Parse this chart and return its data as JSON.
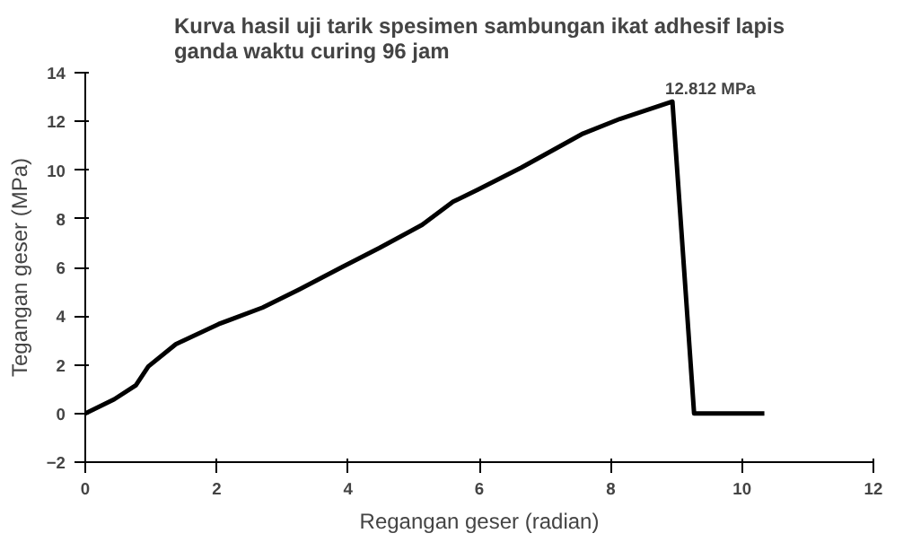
{
  "chart_data": {
    "type": "line",
    "title": "Kurva hasil uji tarik spesimen sambungan ikat adhesif lapis ganda waktu curing 96 jam",
    "xlabel": "Regangan geser (radian)",
    "ylabel": "Tegangan geser (MPa)",
    "x": [
      0,
      0.44,
      0.77,
      0.96,
      1.38,
      2.03,
      2.7,
      3.26,
      3.9,
      4.48,
      5.13,
      5.6,
      5.98,
      6.64,
      7.58,
      8.14,
      8.94,
      9.27,
      10.34
    ],
    "series": [
      {
        "color": "#000000",
        "values": [
          0,
          0.58,
          1.16,
          1.93,
          2.85,
          3.67,
          4.35,
          5.1,
          6.0,
          6.8,
          7.75,
          8.7,
          9.2,
          10.1,
          11.5,
          12.1,
          12.812,
          0,
          0
        ]
      }
    ],
    "xlim": [
      0,
      12
    ],
    "ylim": [
      -2,
      14
    ],
    "xticks": [
      0,
      2,
      4,
      6,
      8,
      10,
      12
    ],
    "yticks": [
      -2,
      0,
      2,
      4,
      6,
      8,
      10,
      12,
      14
    ],
    "grid": false,
    "marker": "none",
    "line_style": "solid",
    "annotations": [
      {
        "text": "12.812 MPa",
        "x": 8.94,
        "y": 12.812
      }
    ]
  }
}
